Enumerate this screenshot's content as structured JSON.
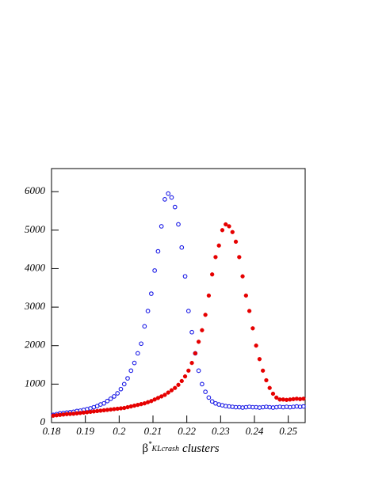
{
  "chart_data": {
    "type": "scatter",
    "x": [
      0.1805,
      0.1815,
      0.1825,
      0.1835,
      0.1845,
      0.1855,
      0.1865,
      0.1875,
      0.1885,
      0.1895,
      0.1905,
      0.1915,
      0.1925,
      0.1935,
      0.1945,
      0.1955,
      0.1965,
      0.1975,
      0.1985,
      0.1995,
      0.2005,
      0.2015,
      0.2025,
      0.2035,
      0.2045,
      0.2055,
      0.2065,
      0.2075,
      0.2085,
      0.2095,
      0.2105,
      0.2115,
      0.2125,
      0.2135,
      0.2145,
      0.2155,
      0.2165,
      0.2175,
      0.2185,
      0.2195,
      0.2205,
      0.2215,
      0.2225,
      0.2235,
      0.2245,
      0.2255,
      0.2265,
      0.2275,
      0.2285,
      0.2295,
      0.2305,
      0.2315,
      0.2325,
      0.2335,
      0.2345,
      0.2355,
      0.2365,
      0.2375,
      0.2385,
      0.2395,
      0.2405,
      0.2415,
      0.2425,
      0.2435,
      0.2445,
      0.2455,
      0.2465,
      0.2475,
      0.2485,
      0.2495,
      0.2505,
      0.2515,
      0.2525,
      0.2535,
      0.2545
    ],
    "series": [
      {
        "color": "#1a1ae6",
        "marker": "open",
        "values": [
          200,
          220,
          240,
          250,
          260,
          270,
          280,
          300,
          310,
          330,
          350,
          370,
          400,
          430,
          470,
          500,
          560,
          620,
          680,
          760,
          870,
          1000,
          1150,
          1350,
          1550,
          1800,
          2050,
          2500,
          2900,
          3350,
          3950,
          4450,
          5100,
          5800,
          5950,
          5850,
          5600,
          5150,
          4550,
          3800,
          2900,
          2350,
          1800,
          1350,
          1000,
          800,
          650,
          550,
          500,
          470,
          450,
          430,
          420,
          410,
          400,
          400,
          390,
          400,
          410,
          400,
          400,
          390,
          400,
          410,
          400,
          390,
          400,
          410,
          400,
          410,
          400,
          410,
          420,
          410,
          420
        ]
      },
      {
        "color": "#e60000",
        "marker": "filled",
        "values": [
          180,
          190,
          200,
          210,
          220,
          225,
          230,
          240,
          250,
          260,
          270,
          280,
          290,
          300,
          310,
          320,
          330,
          340,
          350,
          360,
          370,
          380,
          400,
          420,
          440,
          460,
          480,
          500,
          530,
          560,
          600,
          640,
          680,
          720,
          780,
          840,
          900,
          980,
          1080,
          1200,
          1350,
          1550,
          1800,
          2100,
          2400,
          2800,
          3300,
          3850,
          4300,
          4600,
          5000,
          5150,
          5100,
          4950,
          4700,
          4300,
          3800,
          3300,
          2900,
          2450,
          2000,
          1650,
          1350,
          1100,
          900,
          750,
          650,
          600,
          600,
          590,
          600,
          610,
          620,
          610,
          620
        ]
      }
    ],
    "xlabel": {
      "symbol": "β",
      "superscript": "*",
      "subscript": "KLcrash",
      "text": "clusters"
    },
    "xlim": [
      0.18,
      0.255
    ],
    "xticks": [
      0.18,
      0.19,
      0.2,
      0.21,
      0.22,
      0.23,
      0.24,
      0.25
    ],
    "ylim": [
      0,
      6600
    ],
    "yticks": [
      0,
      1000,
      2000,
      3000,
      4000,
      5000,
      6000
    ],
    "grid": false
  }
}
